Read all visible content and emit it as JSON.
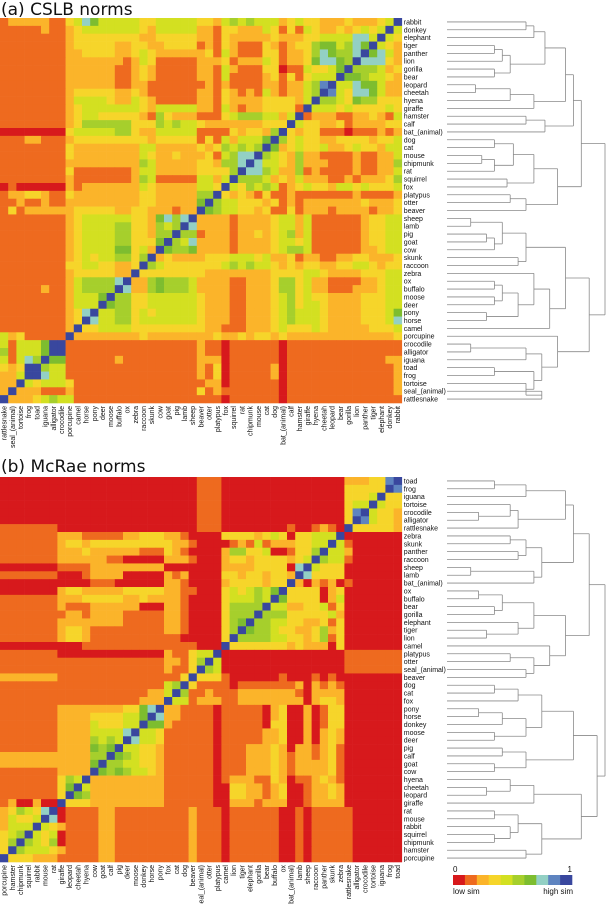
{
  "chart_data": [
    {
      "type": "heatmap",
      "title": "(a) CSLB norms",
      "row_labels": [
        "rabbit",
        "donkey",
        "elephant",
        "tiger",
        "panther",
        "lion",
        "gorilla",
        "bear",
        "leopard",
        "cheetah",
        "hyena",
        "giraffe",
        "hamster",
        "calf",
        "bat_(animal)",
        "dog",
        "cat",
        "mouse",
        "chipmunk",
        "rat",
        "squirrel",
        "fox",
        "platypus",
        "otter",
        "beaver",
        "sheep",
        "lamb",
        "pig",
        "goat",
        "cow",
        "skunk",
        "raccoon",
        "zebra",
        "ox",
        "buffalo",
        "moose",
        "deer",
        "pony",
        "horse",
        "camel",
        "porcupine",
        "crocodile",
        "alligator",
        "iguana",
        "toad",
        "frog",
        "tortoise",
        "seal_(animal)",
        "rattlesnake"
      ],
      "column_order": "reverse of row_labels",
      "value_scale": "similarity level 0-9 (0 = low sim, 9 = high sim), lower triangle by row order",
      "levels_lower_triangle": [
        "9",
        "49",
        "349",
        "2349",
        "24769",
        "237779",
        "3245559",
        "23445669",
        "224667449",
        "2246773489",
        "33355634559",
        "343333434449",
        "4123221122219",
        "33222213223349",
        "212111011133239",
        "4332333322334359",
        "44233432243343269",
        "422112111122523459",
        "5221121112225234479",
        "42211211112152245779",
        "532221211222423245559",
        "4333434423343214545349",
        "21111211111112113123239",
        "322232222222121323334459",
        "3221222212221311323344569",
        "44332111111424432222122229",
        "443321111114244322221222279",
        "4433211111142543232212221559",
        "44332111111434432222122227459",
        "443221111114554322221222265569",
        "3222332211221322434443332222329",
        "33234433223323234454543333333459",
        "443332222344333322222222333333339",
        "4432211112243553222112222455565229",
        "44322211122435532221122224555652279",
        "443332222334354322211222344444433559",
        "4433322223443543222112223444444335569",
        "64333222234445432221122234444434355449",
        "743332222344454322211222344444443554479",
        "4333222223433343222111223333333334444339",
        "32222222222222323323223222222223222222229",
        "111111111111110111111011211111111111111119",
        "1111111111111101111110112111111111111111199",
        "22111111111111011111102221111111112111111669",
        "211111111111110211111031211111111111111114459",
        "2111111111111102111110312111111111111111144799",
        "21111111111111011111102211111111111111113444349",
        "211111111111110111111121311111111111111121112229",
        "1111111111111101111110111111111111111111445432229"
      ],
      "dendrogram": [
        1.0,
        [
          0.85,
          [
            0.8,
            [
              0.75,
              [
                0.62,
                [
                  0.55,
                  [
                    0.5,
                    0,
                    1
                  ],
                  2
                ],
                [
                  0.4,
                  [
                    0.35,
                    [
                      0.3,
                      3,
                      4
                    ],
                    5
                  ],
                  [
                    0.3,
                    6,
                    7
                  ]
                ]
              ],
              [
                0.55,
                [
                  0.4,
                  [
                    0.18,
                    8,
                    9
                  ],
                  10
                ],
                11
              ]
            ],
            [
              0.62,
              [
                0.5,
                12,
                13
              ],
              14
            ]
          ],
          [
            0.7,
            [
              0.55,
              [
                0.42,
                [
                  0.3,
                  15,
                  16
                ],
                [
                  0.3,
                  [
                    0.22,
                    17,
                    18
                  ],
                  19
                ]
              ],
              [
                0.38,
                20,
                21
              ]
            ],
            [
              0.5,
              [
                0.4,
                22,
                23
              ],
              24
            ]
          ]
        ],
        [
          0.9,
          [
            0.75,
            [
              0.5,
              [
                0.35,
                [
                  0.15,
                  25,
                  26
                ],
                [
                  0.3,
                  [
                    0.25,
                    27,
                    28
                  ],
                  29
                ]
              ],
              [
                0.45,
                30,
                31
              ]
            ],
            [
              0.65,
              [
                0.55,
                32,
                [
                  0.45,
                  [
                    0.35,
                    [
                      0.3,
                      33,
                      34
                    ],
                    [
                      0.3,
                      35,
                      36
                    ]
                  ],
                  [
                    0.25,
                    37,
                    38
                  ]
                ]
              ],
              39
            ]
          ],
          [
            0.7,
            40,
            [
              0.6,
              [
                0.5,
                [
                  0.15,
                  41,
                  42
                ],
                43
              ],
              [
                0.55,
                [
                  0.3,
                  44,
                  45
                ],
                [
                  0.5,
                  46,
                  [
                    0.6,
                    47,
                    48
                  ]
                ]
              ]
            ]
          ]
        ]
      ]
    },
    {
      "type": "heatmap",
      "title": "(b) McRae norms",
      "row_labels": [
        "toad",
        "frog",
        "iguana",
        "tortoise",
        "crocodile",
        "alligator",
        "rattlesnake",
        "zebra",
        "skunk",
        "panther",
        "raccoon",
        "sheep",
        "lamb",
        "bat_(animal)",
        "ox",
        "buffalo",
        "bear",
        "gorilla",
        "elephant",
        "tiger",
        "lion",
        "camel",
        "platypus",
        "otter",
        "seal_(animal)",
        "beaver",
        "dog",
        "cat",
        "fox",
        "pony",
        "horse",
        "donkey",
        "moose",
        "deer",
        "pig",
        "calf",
        "goat",
        "cow",
        "hyena",
        "cheetah",
        "leopard",
        "giraffe",
        "rat",
        "mouse",
        "rabbit",
        "squirrel",
        "chipmunk",
        "hamster",
        "porcupine"
      ],
      "column_order": "reverse of row_labels",
      "value_scale": "similarity level 0-9 (0 = low sim, 9 = high sim), lower triangle by row order",
      "levels_lower_triangle": [
        "9",
        "89",
        "339",
        "3349",
        "23349",
        "233489",
        "2333339",
        "00000009",
        "000000149",
        "0000002449",
        "00000014459",
        "000000033349",
        "0000000333379",
        "00000010212029",
        "000000032033339",
        "0000000420333369",
        "00000003143322449",
        "000000024333335559",
        "0000000313223344559",
        "00000003253223345569",
        "000000031532334455559",
        "0000000302223233333339",
        "11111110000000000000009",
        "111111100000000000000049",
        "1111111000000000000000459",
        "00000000101000100000013339",
        "000000012120211111110111139",
        "0000000222201222222211121159",
        "00000002332022222222112221449",
        "000000033102003201111101111229",
        "0000000331020032011111011112279",
        "00000003310200330111110111112669",
        "000000023202003221111101111113449",
        "0000000232020032211111011111134479",
        "00000001321220232221110111111233449",
        "000000013212212322211101111112334569",
        "0000000132222123222111011111123344559",
        "00000001322221232221110111111234456569",
        "000000012321102311222101111112222222229",
        "0000000232210032122330011111122222222249",
        "00000002322100321223300111111222222222569",
        "000000022221002221222001111112222222223339",
        "0000001111101001111110111211111111122111109",
        "00000011111010011111101112111111111221111079",
        "000000111110100111111011121111111112211112349",
        "0000001111101001111110111211111111122111104349",
        "00000011111010011111101112111111111221111053459",
        "000000111110100111111011121111111112211112344459",
        "0000001111101001111110111211111111122111112223339"
      ],
      "dendrogram": [
        1.0,
        [
          0.9,
          [
            0.8,
            [
              0.75,
              [
                0.5,
                [
                  0.3,
                  0,
                  1
                ],
                2
              ],
              [
                0.45,
                [
                  0.4,
                  3,
                  [
                    0.2,
                    4,
                    5
                  ]
                ],
                6
              ]
            ],
            [
              0.6,
              [
                0.5,
                [
                  0.4,
                  7,
                  8
                ],
                [
                  0.45,
                  9,
                  10
                ]
              ],
              [
                0.55,
                [
                  0.15,
                  11,
                  12
                ],
                13
              ]
            ]
          ],
          [
            0.75,
            [
              0.55,
              [
                0.35,
                [
                  0.2,
                  14,
                  15
                ],
                [
                  0.3,
                  16,
                  17
                ]
              ],
              [
                0.45,
                18,
                [
                  0.25,
                  19,
                  20
                ]
              ]
            ],
            [
              0.65,
              21,
              [
                0.55,
                [
                  0.4,
                  22,
                  23
                ],
                [
                  0.5,
                  24,
                  25
                ]
              ]
            ]
          ]
        ],
        [
          0.95,
          [
            0.8,
            [
              0.6,
              [
                0.45,
                [
                  0.3,
                  26,
                  27
                ],
                28
              ],
              [
                0.5,
                [
                  0.35,
                  [
                    0.2,
                    29,
                    30
                  ],
                  31
                ],
                [
                  0.3,
                  32,
                  33
                ]
              ]
            ],
            [
              0.5,
              [
                0.35,
                34,
                35
              ],
              [
                0.3,
                36,
                37
              ]
            ]
          ],
          [
            0.85,
            [
              0.55,
              [
                0.4,
                38,
                [
                  0.25,
                  39,
                  40
                ]
              ],
              41
            ],
            [
              0.6,
              [
                0.45,
                [
                  0.3,
                  42,
                  43
                ],
                [
                  0.4,
                  44,
                  [
                    0.3,
                    45,
                    46
                  ]
                ]
              ],
              [
                0.5,
                47,
                48
              ]
            ]
          ]
        ]
      ]
    }
  ],
  "legend": {
    "min_label": "0",
    "max_label": "1",
    "low_label": "low sim",
    "high_label": "high sim",
    "colors": [
      "#d7191c",
      "#ee6a1f",
      "#fbb42a",
      "#f6d52a",
      "#d3e021",
      "#a6cf2c",
      "#7dbd2f",
      "#93d0c4",
      "#5e84c0",
      "#39479e"
    ]
  }
}
